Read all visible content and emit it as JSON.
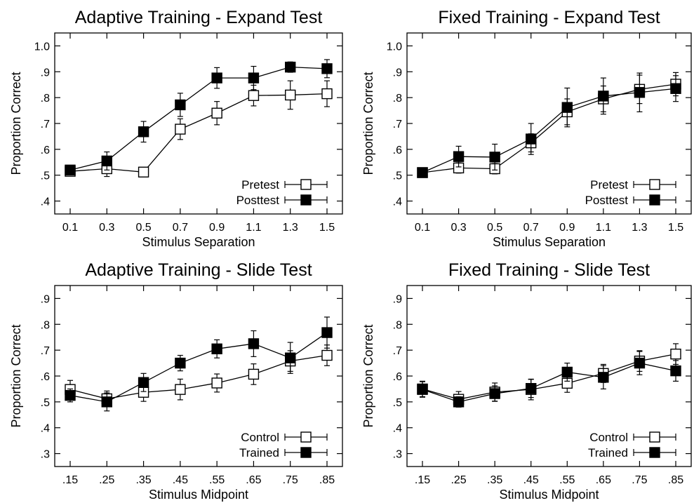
{
  "chart_data": [
    {
      "type": "line",
      "title": "Adaptive Training - Expand Test",
      "xlabel": "Stimulus Separation",
      "ylabel": "Proportion Correct",
      "categories": [
        "0.1",
        "0.3",
        "0.5",
        "0.7",
        "0.9",
        "1.1",
        "1.3",
        "1.5"
      ],
      "ylim": [
        0.35,
        1.05
      ],
      "yticks": [
        0.4,
        0.5,
        0.6,
        0.7,
        0.8,
        0.9,
        1.0
      ],
      "yticklabels": [
        ".4",
        ".5",
        ".6",
        ".7",
        ".8",
        ".9",
        "1.0"
      ],
      "legend_position": "bottom-right",
      "series": [
        {
          "name": "Pretest",
          "marker": "open-square",
          "values": [
            0.515,
            0.525,
            0.512,
            0.678,
            0.74,
            0.808,
            0.81,
            0.815
          ],
          "errors": [
            0.015,
            0.03,
            0.015,
            0.04,
            0.045,
            0.04,
            0.055,
            0.05
          ]
        },
        {
          "name": "Posttest",
          "marker": "filled-square",
          "values": [
            0.52,
            0.555,
            0.668,
            0.772,
            0.876,
            0.876,
            0.918,
            0.912
          ],
          "errors": [
            0.015,
            0.035,
            0.04,
            0.045,
            0.04,
            0.045,
            0.02,
            0.035
          ]
        }
      ]
    },
    {
      "type": "line",
      "title": "Fixed Training - Expand Test",
      "xlabel": "Stimulus Separation",
      "ylabel": "Proportion Correct",
      "categories": [
        "0.1",
        "0.3",
        "0.5",
        "0.7",
        "0.9",
        "1.1",
        "1.3",
        "1.5"
      ],
      "ylim": [
        0.35,
        1.05
      ],
      "yticks": [
        0.4,
        0.5,
        0.6,
        0.7,
        0.8,
        0.9,
        1.0
      ],
      "yticklabels": [
        ".4",
        ".5",
        ".6",
        ".7",
        ".8",
        ".9",
        "1.0"
      ],
      "legend_position": "bottom-right",
      "series": [
        {
          "name": "Pretest",
          "marker": "open-square",
          "values": [
            0.51,
            0.528,
            0.525,
            0.625,
            0.745,
            0.795,
            0.832,
            0.852
          ],
          "errors": [
            0.01,
            0.02,
            0.02,
            0.035,
            0.05,
            0.05,
            0.055,
            0.045
          ]
        },
        {
          "name": "Posttest",
          "marker": "filled-square",
          "values": [
            0.51,
            0.572,
            0.57,
            0.64,
            0.762,
            0.806,
            0.82,
            0.835
          ],
          "errors": [
            0.01,
            0.04,
            0.05,
            0.06,
            0.075,
            0.07,
            0.075,
            0.05
          ]
        }
      ]
    },
    {
      "type": "line",
      "title": "Adaptive Training - Slide Test",
      "xlabel": "Stimulus Midpoint",
      "ylabel": "Proportion Correct",
      "categories": [
        ".15",
        ".25",
        ".35",
        ".45",
        ".55",
        ".65",
        ".75",
        ".85"
      ],
      "ylim": [
        0.25,
        0.95
      ],
      "yticks": [
        0.3,
        0.4,
        0.5,
        0.6,
        0.7,
        0.8,
        0.9
      ],
      "yticklabels": [
        ".3",
        ".4",
        ".5",
        ".6",
        ".7",
        ".8",
        ".9"
      ],
      "legend_position": "bottom-right",
      "series": [
        {
          "name": "Control",
          "marker": "open-square",
          "values": [
            0.548,
            0.512,
            0.537,
            0.548,
            0.573,
            0.607,
            0.658,
            0.68
          ],
          "errors": [
            0.035,
            0.03,
            0.035,
            0.04,
            0.035,
            0.04,
            0.04,
            0.04
          ]
        },
        {
          "name": "Trained",
          "marker": "filled-square",
          "values": [
            0.525,
            0.5,
            0.575,
            0.65,
            0.705,
            0.725,
            0.67,
            0.768
          ],
          "errors": [
            0.025,
            0.035,
            0.035,
            0.03,
            0.035,
            0.05,
            0.06,
            0.06
          ]
        }
      ]
    },
    {
      "type": "line",
      "title": "Fixed Training - Slide Test",
      "xlabel": "Stimulus Midpoint",
      "ylabel": "Proportion Correct",
      "categories": [
        ".15",
        ".25",
        ".35",
        ".45",
        ".55",
        ".65",
        ".75",
        ".85"
      ],
      "ylim": [
        0.25,
        0.95
      ],
      "yticks": [
        0.3,
        0.4,
        0.5,
        0.6,
        0.7,
        0.8,
        0.9
      ],
      "yticklabels": [
        ".3",
        ".4",
        ".5",
        ".6",
        ".7",
        ".8",
        ".9"
      ],
      "legend_position": "bottom-right",
      "series": [
        {
          "name": "Control",
          "marker": "open-square",
          "values": [
            0.55,
            0.51,
            0.538,
            0.548,
            0.572,
            0.61,
            0.658,
            0.685
          ],
          "errors": [
            0.03,
            0.03,
            0.035,
            0.04,
            0.035,
            0.035,
            0.04,
            0.04
          ]
        },
        {
          "name": "Trained",
          "marker": "filled-square",
          "values": [
            0.548,
            0.5,
            0.532,
            0.552,
            0.615,
            0.595,
            0.65,
            0.62
          ],
          "errors": [
            0.03,
            0.02,
            0.03,
            0.035,
            0.035,
            0.045,
            0.045,
            0.04
          ]
        }
      ]
    }
  ]
}
